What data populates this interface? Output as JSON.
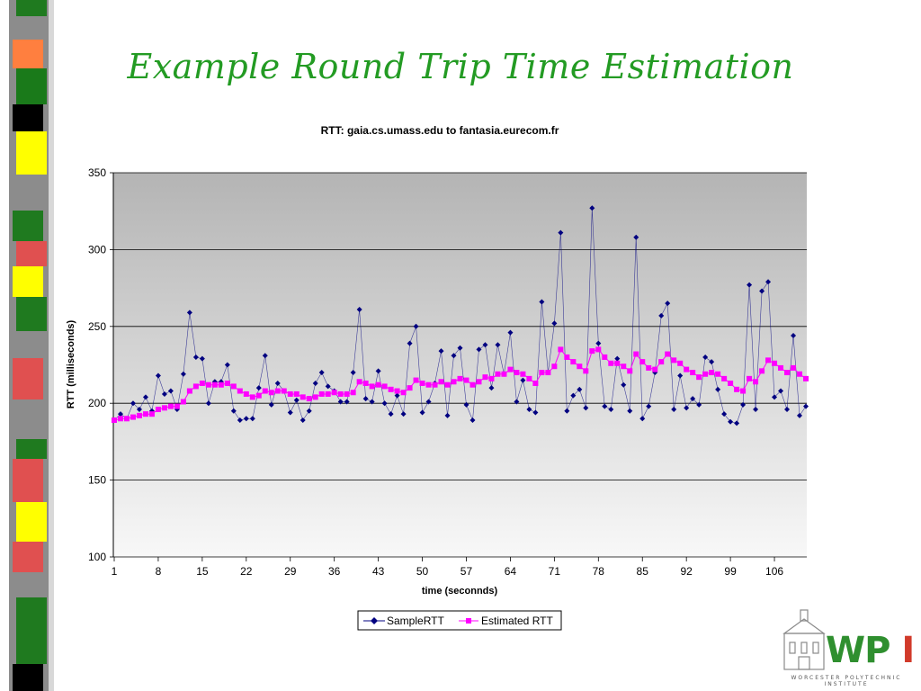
{
  "slide": {
    "title": "Example Round Trip Time Estimation",
    "logo_text": "WPI",
    "logo_subtext": "WORCESTER POLYTECHNIC INSTITUTE"
  },
  "colors": {
    "title": "#239b23",
    "sample": "#000080",
    "estimated": "#ff00ff",
    "grid": "#000000"
  },
  "chart_data": {
    "type": "line",
    "title": "RTT: gaia.cs.umass.edu to fantasia.eurecom.fr",
    "xlabel": "time (seconnds)",
    "ylabel": "RTT (milliseconds)",
    "x": [
      1,
      2,
      3,
      4,
      5,
      6,
      7,
      8,
      9,
      10,
      11,
      12,
      13,
      14,
      15,
      16,
      17,
      18,
      19,
      20,
      21,
      22,
      23,
      24,
      25,
      26,
      27,
      28,
      29,
      30,
      31,
      32,
      33,
      34,
      35,
      36,
      37,
      38,
      39,
      40,
      41,
      42,
      43,
      44,
      45,
      46,
      47,
      48,
      49,
      50,
      51,
      52,
      53,
      54,
      55,
      56,
      57,
      58,
      59,
      60,
      61,
      62,
      63,
      64,
      65,
      66,
      67,
      68,
      69,
      70,
      71,
      72,
      73,
      74,
      75,
      76,
      77,
      78,
      79,
      80,
      81,
      82,
      83,
      84,
      85,
      86,
      87,
      88,
      89,
      90,
      91,
      92,
      93,
      94,
      95,
      96,
      97,
      98,
      99,
      100,
      101,
      102,
      103,
      104,
      105,
      106,
      107,
      108,
      109,
      110,
      111
    ],
    "xticks": [
      "1",
      "8",
      "15",
      "22",
      "29",
      "36",
      "43",
      "50",
      "57",
      "64",
      "71",
      "78",
      "85",
      "92",
      "99",
      "106"
    ],
    "yticks": [
      "100",
      "150",
      "200",
      "250",
      "300",
      "350"
    ],
    "ylim": [
      100,
      350
    ],
    "grid": true,
    "legend_position": "bottom",
    "series": [
      {
        "name": "SampleRTT",
        "marker": "diamond",
        "values": [
          189,
          193,
          190,
          200,
          196,
          204,
          195,
          218,
          206,
          208,
          196,
          219,
          259,
          230,
          229,
          200,
          214,
          214,
          225,
          195,
          189,
          190,
          190,
          210,
          231,
          199,
          213,
          208,
          194,
          202,
          189,
          195,
          213,
          220,
          211,
          208,
          201,
          201,
          220,
          261,
          203,
          201,
          221,
          200,
          193,
          205,
          193,
          239,
          250,
          194,
          201,
          213,
          234,
          192,
          231,
          236,
          199,
          189,
          235,
          238,
          210,
          238,
          219,
          246,
          201,
          215,
          196,
          194,
          266,
          220,
          252,
          311,
          195,
          205,
          209,
          197,
          327,
          239,
          198,
          196,
          229,
          212,
          195,
          308,
          190,
          198,
          220,
          257,
          265,
          196,
          218,
          197,
          203,
          199,
          230,
          227,
          209,
          193,
          188,
          187,
          199,
          277,
          196,
          273,
          279,
          204,
          208,
          196,
          244,
          192,
          198
        ]
      },
      {
        "name": "Estimated RTT",
        "marker": "square",
        "values": [
          189,
          190,
          190,
          191,
          192,
          193,
          193,
          196,
          197,
          198,
          198,
          201,
          208,
          211,
          213,
          212,
          212,
          212,
          213,
          211,
          208,
          206,
          204,
          205,
          208,
          207,
          208,
          208,
          206,
          206,
          204,
          203,
          204,
          206,
          206,
          207,
          206,
          206,
          207,
          214,
          213,
          211,
          212,
          211,
          209,
          208,
          207,
          210,
          215,
          213,
          212,
          212,
          214,
          212,
          214,
          216,
          215,
          212,
          214,
          217,
          216,
          219,
          219,
          222,
          220,
          219,
          216,
          213,
          220,
          220,
          224,
          235,
          230,
          227,
          224,
          221,
          234,
          235,
          230,
          226,
          226,
          224,
          221,
          232,
          227,
          223,
          222,
          227,
          232,
          228,
          226,
          222,
          220,
          217,
          219,
          220,
          219,
          216,
          213,
          209,
          208,
          216,
          214,
          221,
          228,
          226,
          223,
          220,
          223,
          219,
          216
        ]
      }
    ]
  }
}
